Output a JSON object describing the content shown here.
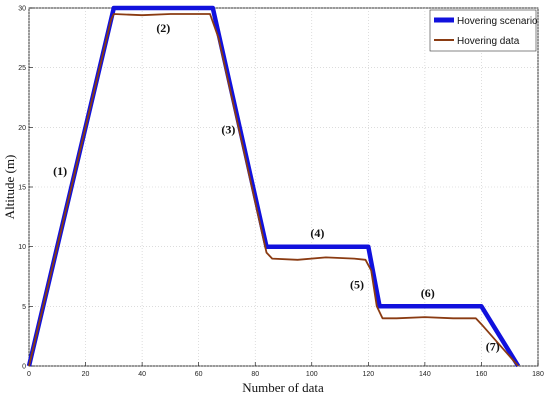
{
  "chart_data": {
    "type": "line",
    "xlabel": "Number of data",
    "ylabel": "Altitude (m)",
    "xlim": [
      0,
      180
    ],
    "ylim": [
      0,
      30
    ],
    "xticks": [
      0,
      20,
      40,
      60,
      80,
      100,
      120,
      140,
      160,
      180
    ],
    "yticks": [
      0,
      5,
      10,
      15,
      20,
      25,
      30
    ],
    "grid": true,
    "legend_position": "top-right",
    "series": [
      {
        "name": "Hovering scenario",
        "color": "#1111dd",
        "points": [
          [
            0,
            0
          ],
          [
            30,
            30
          ],
          [
            65,
            30
          ],
          [
            84,
            10
          ],
          [
            120,
            10
          ],
          [
            124,
            5
          ],
          [
            160,
            5
          ],
          [
            173,
            0
          ]
        ]
      },
      {
        "name": "Hovering data",
        "color": "#8a3b12",
        "points": [
          [
            0,
            0
          ],
          [
            29,
            29
          ],
          [
            30,
            29.5
          ],
          [
            40,
            29.4
          ],
          [
            50,
            29.5
          ],
          [
            60,
            29.5
          ],
          [
            64,
            29.5
          ],
          [
            67,
            27.5
          ],
          [
            76,
            18
          ],
          [
            84,
            9.5
          ],
          [
            86,
            9
          ],
          [
            95,
            8.9
          ],
          [
            105,
            9.1
          ],
          [
            115,
            9
          ],
          [
            119,
            8.9
          ],
          [
            121,
            8
          ],
          [
            123,
            5
          ],
          [
            125,
            4
          ],
          [
            130,
            4
          ],
          [
            140,
            4.1
          ],
          [
            150,
            4
          ],
          [
            158,
            4
          ],
          [
            160,
            3.5
          ],
          [
            173,
            0
          ]
        ]
      }
    ],
    "annotations": [
      {
        "text": "(1)",
        "x": 11,
        "y": 16
      },
      {
        "text": "(2)",
        "x": 47.5,
        "y": 28
      },
      {
        "text": "(3)",
        "x": 70.5,
        "y": 19.5
      },
      {
        "text": "(4)",
        "x": 102,
        "y": 10.8
      },
      {
        "text": "(5)",
        "x": 116,
        "y": 6.5
      },
      {
        "text": "(6)",
        "x": 141,
        "y": 5.8
      },
      {
        "text": "(7)",
        "x": 164,
        "y": 1.3
      }
    ]
  }
}
